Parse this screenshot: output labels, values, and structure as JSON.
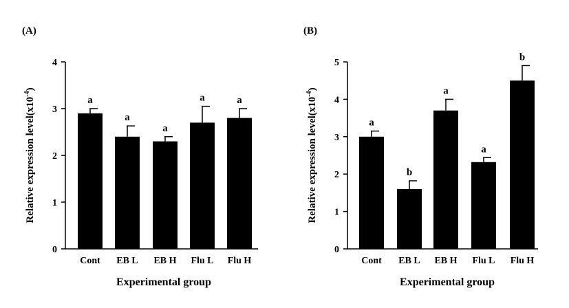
{
  "chart_data": [
    {
      "panel_label": "(A)",
      "type": "bar",
      "categories": [
        "Cont",
        "EB L",
        "EB H",
        "Flu L",
        "Flu H"
      ],
      "values": [
        2.9,
        2.4,
        2.3,
        2.7,
        2.8
      ],
      "errors": [
        0.1,
        0.23,
        0.1,
        0.35,
        0.2
      ],
      "significance_letters": [
        "a",
        "a",
        "a",
        "a",
        "a"
      ],
      "xlabel": "Experimental group",
      "ylabel": "Relative expression level(x10",
      "ylabel_exponent": "-4",
      "ylabel_close": ")",
      "ylim": [
        0,
        4
      ],
      "yticks": [
        "0",
        "1",
        "2",
        "3",
        "4"
      ],
      "bar_color": "#000000",
      "grid": false
    },
    {
      "panel_label": "(B)",
      "type": "bar",
      "categories": [
        "Cont",
        "EB L",
        "EB H",
        "Flu L",
        "Flu H"
      ],
      "values": [
        3.0,
        1.6,
        3.7,
        2.32,
        4.5
      ],
      "errors": [
        0.15,
        0.22,
        0.3,
        0.12,
        0.4
      ],
      "significance_letters": [
        "a",
        "b",
        "a",
        "a",
        "b"
      ],
      "xlabel": "Experimental group",
      "ylabel": "Relative expression level(x10",
      "ylabel_exponent": "-4",
      "ylabel_close": ")",
      "ylim": [
        0,
        5
      ],
      "yticks": [
        "0",
        "1",
        "2",
        "3",
        "4",
        "5"
      ],
      "bar_color": "#000000",
      "grid": false
    }
  ]
}
